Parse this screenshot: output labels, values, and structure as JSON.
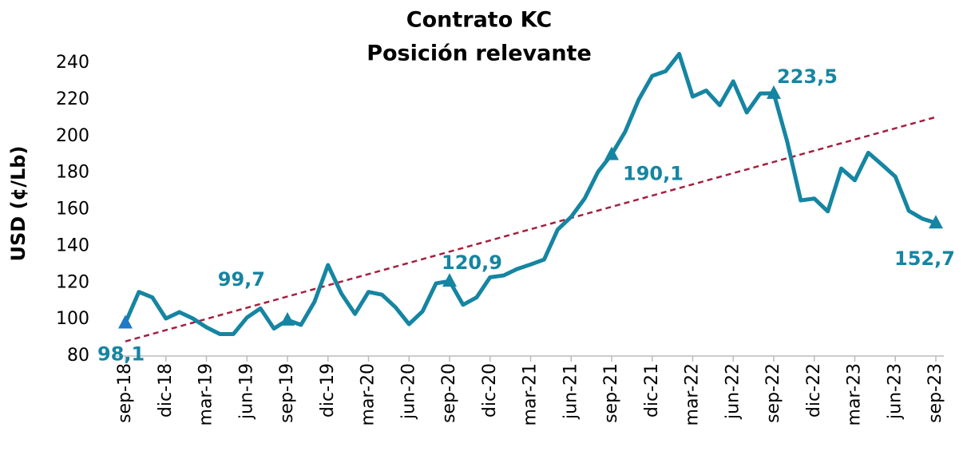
{
  "chart_data": {
    "type": "line",
    "title": "Contrato KC",
    "subtitle": "Posición relevante",
    "y_label": "USD (¢/Lb)",
    "categories": [
      "sep-18",
      null,
      null,
      "dic-18",
      null,
      null,
      "mar-19",
      null,
      null,
      "jun-19",
      null,
      null,
      "sep-19",
      null,
      null,
      "dic-19",
      null,
      null,
      "mar-20",
      null,
      null,
      "jun-20",
      null,
      null,
      "sep-20",
      null,
      null,
      "dic-20",
      null,
      null,
      "mar-21",
      null,
      null,
      "jun-21",
      null,
      null,
      "sep-21",
      null,
      null,
      "dic-21",
      null,
      null,
      "mar-22",
      null,
      null,
      "jun-22",
      null,
      null,
      "sep-22",
      null,
      null,
      "dic-22",
      null,
      null,
      "mar-23",
      null,
      null,
      "jun-23",
      null,
      null,
      "sep-23"
    ],
    "series": [
      {
        "color": "#1585a2",
        "values": [
          98.1,
          115,
          112,
          100.5,
          104,
          100.5,
          95.7,
          92,
          92,
          101,
          106,
          95,
          99.7,
          97,
          109.6,
          129.7,
          114,
          103,
          115,
          113.5,
          106.6,
          97.4,
          104.4,
          119.7,
          120.9,
          108,
          112,
          123,
          124,
          127.5,
          130,
          132.7,
          149,
          156,
          166,
          180.7,
          190.1,
          202.5,
          220,
          233,
          235.6,
          245,
          221.7,
          225,
          217,
          230,
          213,
          223.4,
          223.5,
          197,
          165,
          166,
          159,
          182.4,
          176,
          191,
          184.6,
          178,
          159.3,
          155,
          152.7
        ],
        "value_labels": [
          "98,1",
          null,
          null,
          null,
          null,
          null,
          null,
          null,
          null,
          null,
          null,
          null,
          "99,7",
          null,
          null,
          null,
          null,
          null,
          null,
          null,
          null,
          null,
          null,
          null,
          "120,9",
          null,
          null,
          null,
          null,
          null,
          null,
          null,
          null,
          null,
          null,
          null,
          "190,1",
          null,
          null,
          null,
          null,
          null,
          null,
          null,
          null,
          null,
          null,
          null,
          "223,5",
          null,
          null,
          null,
          null,
          null,
          null,
          null,
          null,
          null,
          null,
          null,
          "152,7"
        ]
      }
    ],
    "trend": {
      "color": "#a3203f",
      "values": [
        88,
        210.5
      ]
    },
    "ylim": [
      80,
      250
    ],
    "yticks": [
      80,
      100,
      120,
      140,
      160,
      180,
      200,
      220,
      240
    ]
  }
}
